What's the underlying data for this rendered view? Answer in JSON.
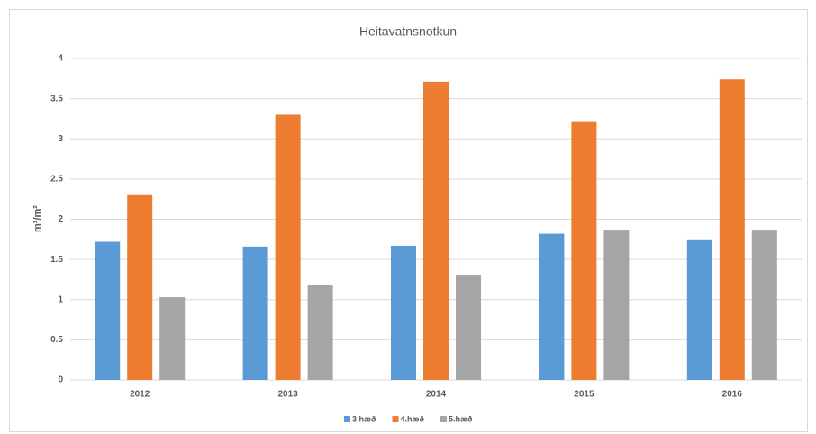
{
  "chart_data": {
    "type": "bar",
    "title": "Heitavatnsnotkun",
    "y_label": "m³/m²",
    "categories": [
      "2012",
      "2013",
      "2014",
      "2015",
      "2016"
    ],
    "series": [
      {
        "name": "3 hæð",
        "color": "#5b9bd5",
        "values": [
          1.72,
          1.66,
          1.67,
          1.82,
          1.75
        ]
      },
      {
        "name": "4.hæð",
        "color": "#ed7d31",
        "values": [
          2.3,
          3.3,
          3.71,
          3.22,
          3.74
        ]
      },
      {
        "name": "5.hæð",
        "color": "#a5a5a5",
        "values": [
          1.03,
          1.18,
          1.31,
          1.87,
          1.87
        ]
      }
    ],
    "ylim": [
      0,
      4
    ],
    "yticks": [
      0,
      0.5,
      1,
      1.5,
      2,
      2.5,
      3,
      3.5,
      4
    ],
    "grid": true,
    "legend": "bottom"
  }
}
